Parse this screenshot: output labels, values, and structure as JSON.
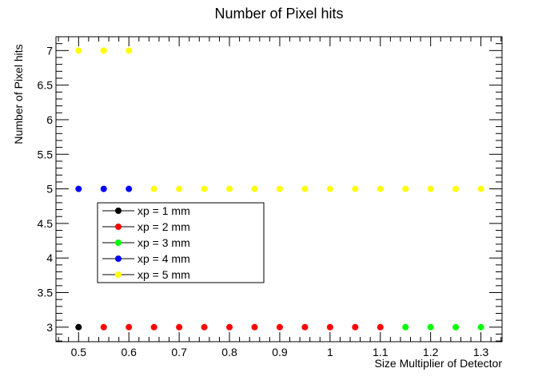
{
  "chart_data": {
    "type": "scatter",
    "title": "Number of Pixel hits",
    "xlabel": "Size Multiplier of Detector",
    "ylabel": "Number of Pixel hits",
    "xlim": [
      0.455,
      1.342
    ],
    "ylim": [
      2.79,
      7.2
    ],
    "x_ticks": [
      0.5,
      0.6,
      0.7,
      0.8,
      0.9,
      1.0,
      1.1,
      1.2,
      1.3
    ],
    "x_tick_labels": [
      "0.5",
      "0.6",
      "0.7",
      "0.8",
      "0.9",
      "1",
      "1.1",
      "1.2",
      "1.3"
    ],
    "y_ticks": [
      3,
      3.5,
      4,
      4.5,
      5,
      5.5,
      6,
      6.5,
      7
    ],
    "y_tick_labels": [
      "3",
      "3.5",
      "4",
      "4.5",
      "5",
      "5.5",
      "6",
      "6.5",
      "7"
    ],
    "grid": false,
    "legend_position": "middle-left",
    "series": [
      {
        "name": "xp = 1 mm",
        "color": "#000000",
        "points": [
          [
            0.5,
            3
          ]
        ]
      },
      {
        "name": "xp = 2 mm",
        "color": "#ff0000",
        "points": [
          [
            0.55,
            3
          ],
          [
            0.6,
            3
          ],
          [
            0.65,
            3
          ],
          [
            0.7,
            3
          ],
          [
            0.75,
            3
          ],
          [
            0.8,
            3
          ],
          [
            0.85,
            3
          ],
          [
            0.9,
            3
          ],
          [
            0.95,
            3
          ],
          [
            1.0,
            3
          ],
          [
            1.05,
            3
          ],
          [
            1.1,
            3
          ]
        ]
      },
      {
        "name": "xp = 3 mm",
        "color": "#00ff00",
        "points": [
          [
            1.15,
            3
          ],
          [
            1.2,
            3
          ],
          [
            1.25,
            3
          ],
          [
            1.3,
            3
          ]
        ]
      },
      {
        "name": "xp = 4 mm",
        "color": "#0000ff",
        "points": [
          [
            0.5,
            5
          ],
          [
            0.55,
            5
          ],
          [
            0.6,
            5
          ]
        ]
      },
      {
        "name": "xp = 5 mm",
        "color": "#ffff00",
        "points": [
          [
            0.5,
            7
          ],
          [
            0.55,
            7
          ],
          [
            0.6,
            7
          ],
          [
            0.65,
            5
          ],
          [
            0.7,
            5
          ],
          [
            0.75,
            5
          ],
          [
            0.8,
            5
          ],
          [
            0.85,
            5
          ],
          [
            0.9,
            5
          ],
          [
            0.95,
            5
          ],
          [
            1.0,
            5
          ],
          [
            1.05,
            5
          ],
          [
            1.1,
            5
          ],
          [
            1.15,
            5
          ],
          [
            1.2,
            5
          ],
          [
            1.25,
            5
          ],
          [
            1.3,
            5
          ]
        ]
      }
    ]
  }
}
